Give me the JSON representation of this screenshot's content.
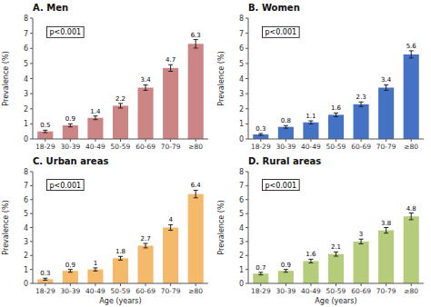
{
  "chart_data": [
    {
      "type": "bar",
      "title": "A. Men",
      "categories": [
        "18-29",
        "30-39",
        "40-49",
        "50-59",
        "60-69",
        "70-79",
        "≥80"
      ],
      "values": [
        0.5,
        0.9,
        1.4,
        2.2,
        3.4,
        4.7,
        6.3
      ],
      "errors": [
        0.08,
        0.1,
        0.12,
        0.15,
        0.18,
        0.22,
        0.28
      ],
      "color": "#cc8585",
      "annotation": "p<0.001",
      "ylabel": "Prevalence (%)",
      "ylim": [
        0,
        8
      ],
      "yticks": [
        0,
        1,
        2,
        3,
        4,
        5,
        6,
        7,
        8
      ],
      "grid": false,
      "data_labels": true
    },
    {
      "type": "bar",
      "title": "B. Women",
      "categories": [
        "18-29",
        "30-39",
        "40-49",
        "50-59",
        "60-69",
        "70-79",
        "≥80"
      ],
      "values": [
        0.3,
        0.8,
        1.1,
        1.6,
        2.3,
        3.4,
        5.6
      ],
      "errors": [
        0.06,
        0.09,
        0.1,
        0.12,
        0.15,
        0.18,
        0.24
      ],
      "color": "#4472c4",
      "annotation": "p<0.001",
      "ylabel": "Prevalence (%)",
      "ylim": [
        0,
        8
      ],
      "yticks": [
        0,
        1,
        2,
        3,
        4,
        5,
        6,
        7,
        8
      ],
      "grid": false,
      "data_labels": true
    },
    {
      "type": "bar",
      "title": "C. Urban areas",
      "categories": [
        "18-29",
        "30-39",
        "40-49",
        "50-59",
        "60-69",
        "70-79",
        "≥80"
      ],
      "values": [
        0.3,
        0.9,
        1.0,
        1.8,
        2.7,
        4.0,
        6.4
      ],
      "errors": [
        0.07,
        0.1,
        0.11,
        0.13,
        0.16,
        0.2,
        0.27
      ],
      "color": "#f5b96b",
      "annotation": "p<0.001",
      "ylabel": "Prevalence (%)",
      "xlabel": "Age (years)",
      "ylim": [
        0,
        8
      ],
      "yticks": [
        0,
        1,
        2,
        3,
        4,
        5,
        6,
        7,
        8
      ],
      "grid": false,
      "data_labels": true
    },
    {
      "type": "bar",
      "title": "D. Rural areas",
      "categories": [
        "18-29",
        "30-39",
        "40-49",
        "50-59",
        "60-69",
        "70-79",
        "≥80"
      ],
      "values": [
        0.7,
        0.9,
        1.6,
        2.1,
        3.0,
        3.8,
        4.8
      ],
      "errors": [
        0.09,
        0.1,
        0.13,
        0.15,
        0.17,
        0.2,
        0.24
      ],
      "color": "#b5cc7a",
      "annotation": "p<0.001",
      "ylabel": "Prevalence (%)",
      "xlabel": "Age (years)",
      "ylim": [
        0,
        8
      ],
      "yticks": [
        0,
        1,
        2,
        3,
        4,
        5,
        6,
        7,
        8
      ],
      "grid": false,
      "data_labels": true
    }
  ]
}
